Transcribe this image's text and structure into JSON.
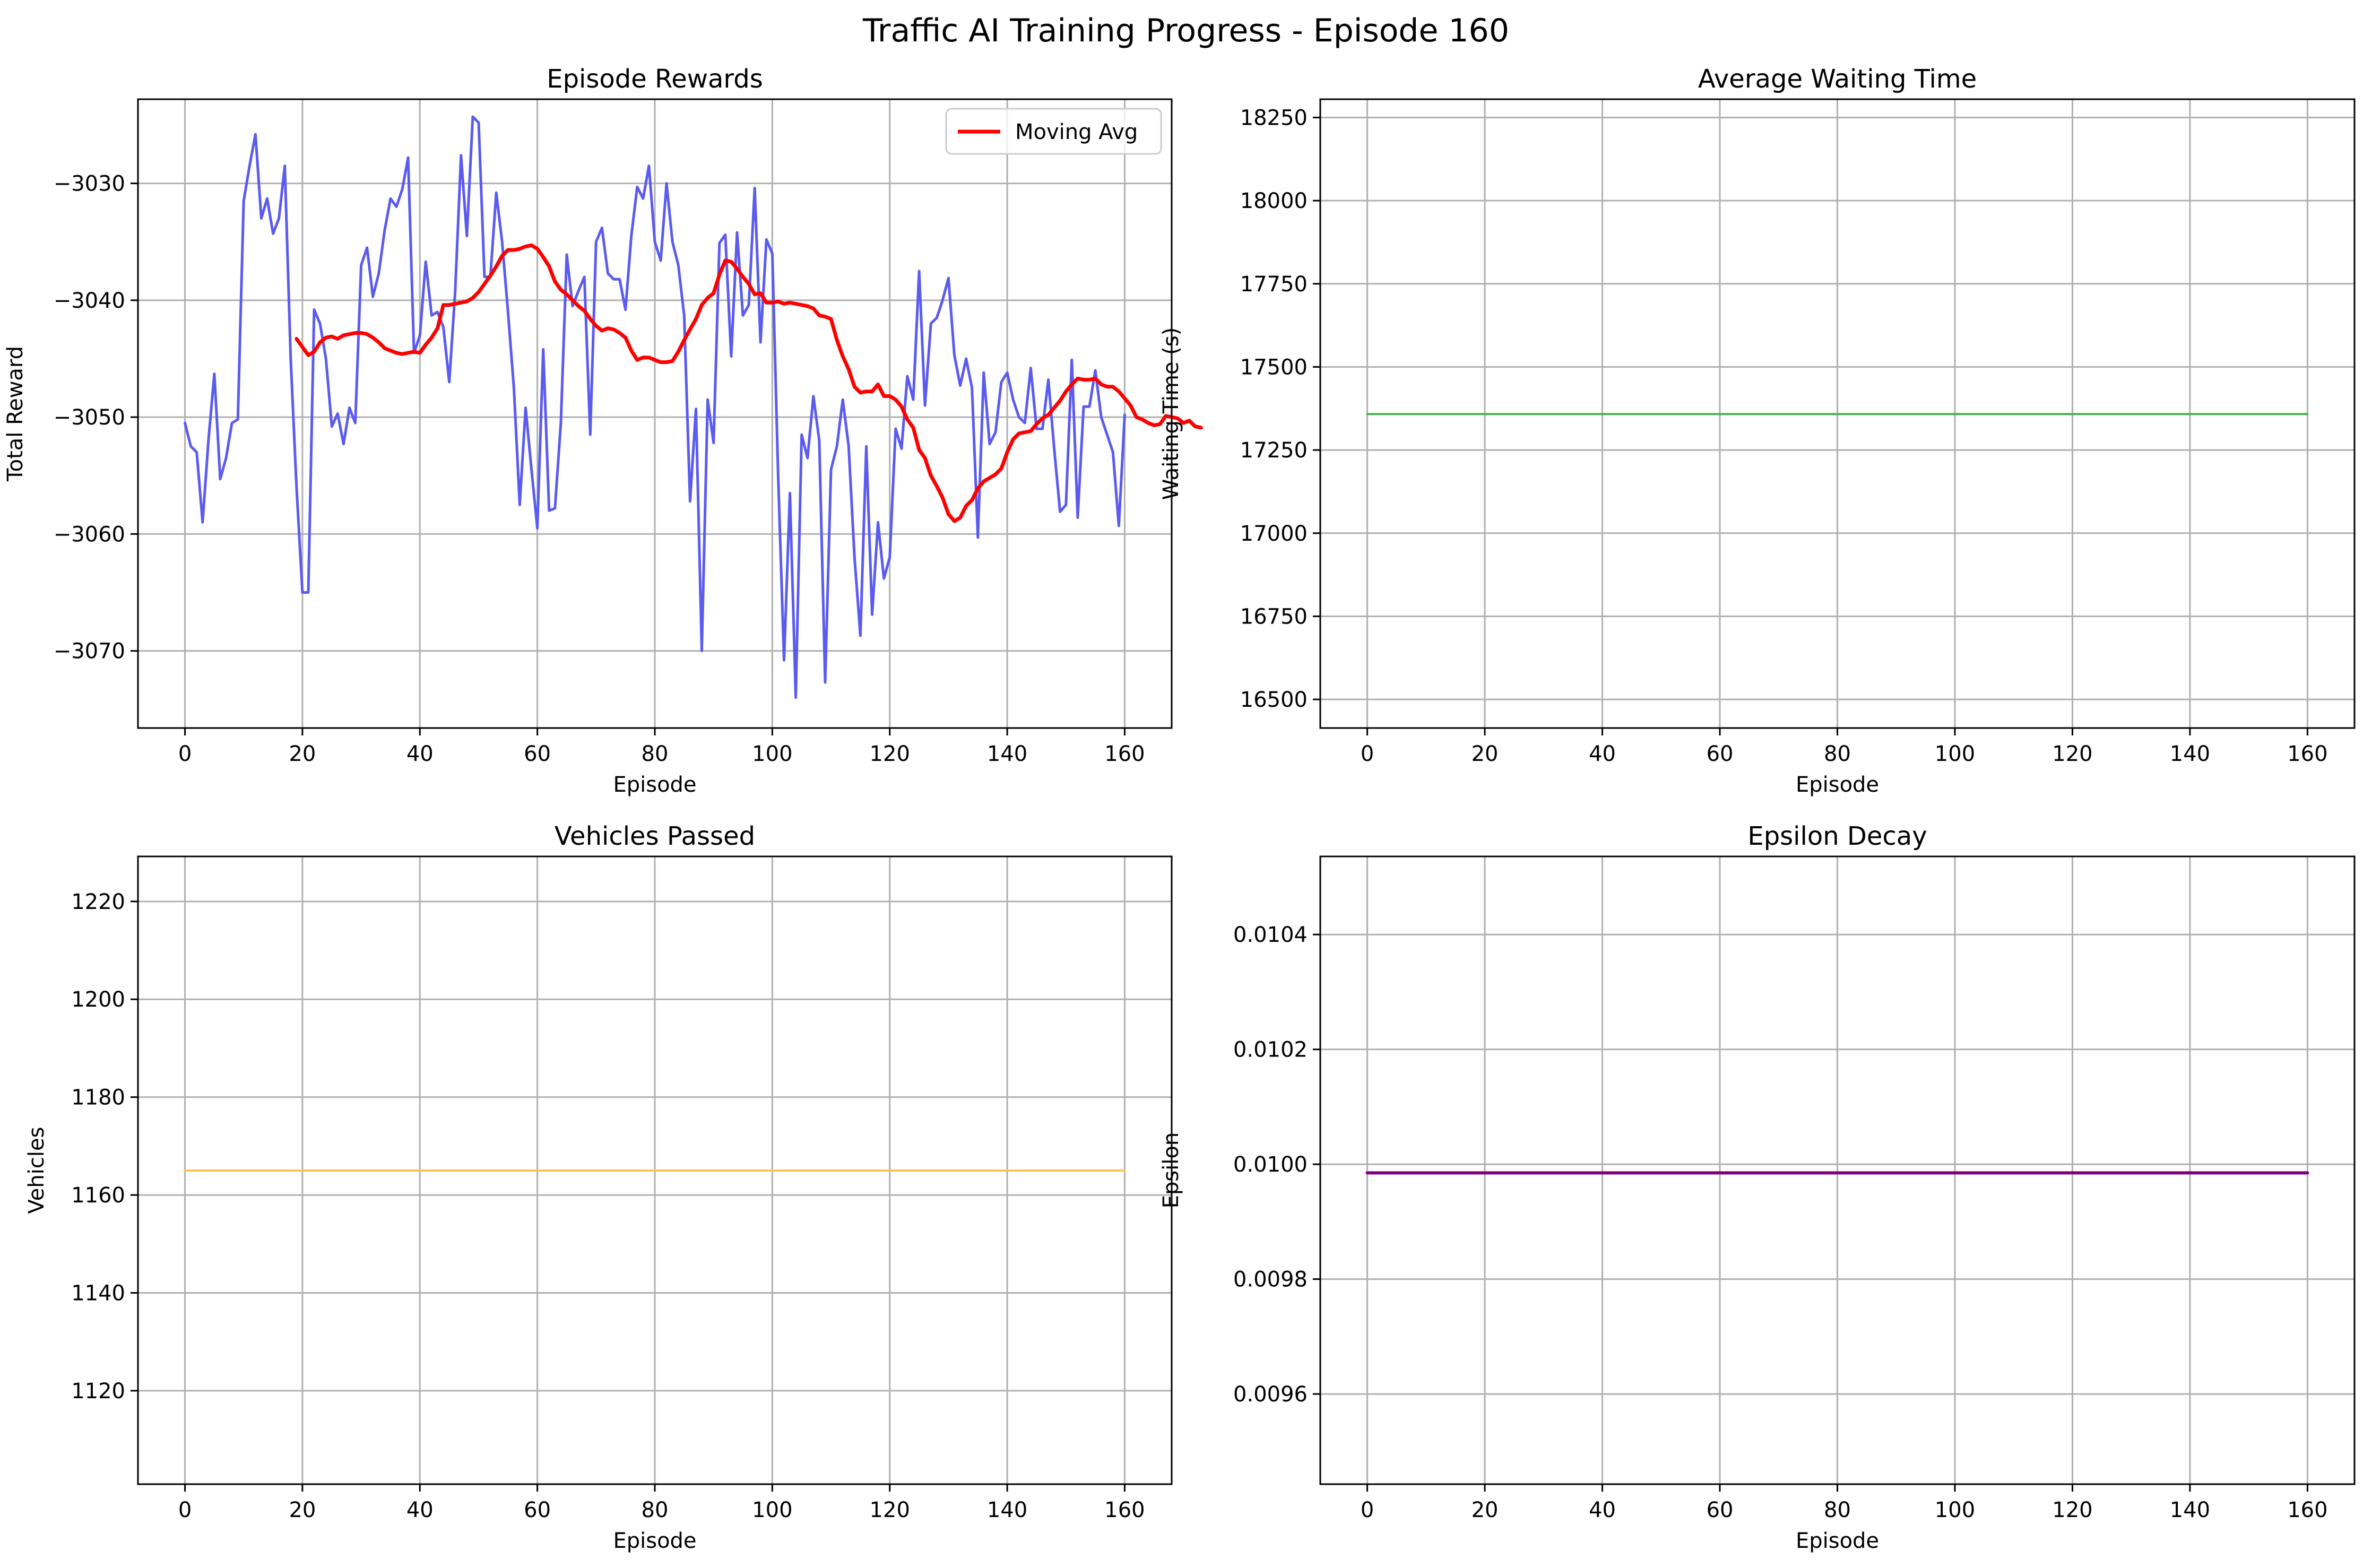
{
  "title": "Traffic AI Training Progress - Episode 160",
  "chart_data": [
    {
      "type": "line",
      "title": "Episode Rewards",
      "xlabel": "Episode",
      "ylabel": "Total Reward",
      "xlim": [
        -8,
        168
      ],
      "ylim": [
        -3076.6,
        -3022.8
      ],
      "xticks": [
        0,
        20,
        40,
        60,
        80,
        100,
        120,
        140,
        160
      ],
      "yticks": [
        -3070,
        -3060,
        -3050,
        -3040,
        -3030
      ],
      "grid": true,
      "legend": "top-right",
      "series": [
        {
          "color": "#5b5bf0",
          "x_start": 0,
          "values": [
            -3050.5,
            -3052.5,
            -3053,
            -3059,
            -3052,
            -3046.3,
            -3055.3,
            -3053.5,
            -3050.5,
            -3050.2,
            -3031.5,
            -3028.5,
            -3025.8,
            -3033,
            -3031.3,
            -3034.3,
            -3033,
            -3028.5,
            -3045,
            -3056,
            -3065,
            -3065,
            -3040.8,
            -3042,
            -3045,
            -3050.8,
            -3049.7,
            -3052.3,
            -3049.2,
            -3050.5,
            -3037,
            -3035.5,
            -3039.7,
            -3037.7,
            -3034,
            -3031.3,
            -3032,
            -3030.5,
            -3027.8,
            -3044.5,
            -3043,
            -3036.7,
            -3041.3,
            -3041,
            -3042.3,
            -3047,
            -3039.3,
            -3027.6,
            -3034.5,
            -3024.3,
            -3024.8,
            -3038,
            -3038,
            -3030.8,
            -3035,
            -3041,
            -3047.5,
            -3057.5,
            -3049.2,
            -3054.5,
            -3059.5,
            -3044.2,
            -3058,
            -3057.8,
            -3050.5,
            -3036.1,
            -3040.5,
            -3039.2,
            -3038,
            -3051.5,
            -3035,
            -3033.8,
            -3037.7,
            -3038.2,
            -3038.2,
            -3040.8,
            -3034.5,
            -3030.3,
            -3031.3,
            -3028.5,
            -3035,
            -3036.6,
            -3030,
            -3035,
            -3037,
            -3041.3,
            -3057.2,
            -3049.3,
            -3070,
            -3048.5,
            -3052.2,
            -3035.1,
            -3034.4,
            -3044.8,
            -3034.2,
            -3041.3,
            -3040.4,
            -3030.4,
            -3043.6,
            -3034.8,
            -3036,
            -3055,
            -3070.8,
            -3056.5,
            -3074,
            -3051.5,
            -3053.5,
            -3048.2,
            -3052,
            -3072.7,
            -3054.5,
            -3052.5,
            -3048.5,
            -3052.5,
            -3062,
            -3068.7,
            -3052.5,
            -3066.9,
            -3059,
            -3063.8,
            -3062,
            -3051,
            -3052.7,
            -3046.5,
            -3048.5,
            -3037.5,
            -3049,
            -3042,
            -3041.5,
            -3040,
            -3038.1,
            -3044.7,
            -3047.3,
            -3045,
            -3047.5,
            -3060.3,
            -3046.2,
            -3052.3,
            -3051.3,
            -3047,
            -3046.2,
            -3048.5,
            -3050,
            -3050.5,
            -3045.8,
            -3051,
            -3051,
            -3046.8,
            -3052.7,
            -3058.1,
            -3057.5,
            -3045.1,
            -3058.6,
            -3049.1,
            -3049.1,
            -3046,
            -3050,
            -3051.5,
            -3053,
            -3059.3,
            -3049.8
          ]
        },
        {
          "name": "Moving Avg",
          "color": "#ff0000",
          "x_start": 19,
          "values": [
            -3043.3,
            -3044,
            -3044.7,
            -3044.4,
            -3043.6,
            -3043.2,
            -3043.1,
            -3043.3,
            -3043,
            -3042.9,
            -3042.8,
            -3042.8,
            -3042.9,
            -3043.2,
            -3043.6,
            -3044.1,
            -3044.3,
            -3044.5,
            -3044.6,
            -3044.5,
            -3044.4,
            -3044.5,
            -3043.8,
            -3043.2,
            -3042.4,
            -3040.4,
            -3040.4,
            -3040.3,
            -3040.2,
            -3040.1,
            -3039.8,
            -3039.3,
            -3038.6,
            -3037.9,
            -3037.1,
            -3036.2,
            -3035.7,
            -3035.7,
            -3035.6,
            -3035.4,
            -3035.3,
            -3035.6,
            -3036.3,
            -3037.1,
            -3038.4,
            -3039.1,
            -3039.5,
            -3040,
            -3040.5,
            -3040.9,
            -3041.6,
            -3042.2,
            -3042.6,
            -3042.4,
            -3042.5,
            -3042.8,
            -3043.2,
            -3044.3,
            -3045.1,
            -3044.9,
            -3044.9,
            -3045.1,
            -3045.3,
            -3045.3,
            -3045.2,
            -3044.4,
            -3043.4,
            -3042.5,
            -3041.6,
            -3040.4,
            -3039.8,
            -3039.4,
            -3037.8,
            -3036.6,
            -3036.7,
            -3037.3,
            -3038,
            -3038.6,
            -3039.5,
            -3039.4,
            -3040.2,
            -3040.2,
            -3040.1,
            -3040.3,
            -3040.2,
            -3040.3,
            -3040.4,
            -3040.5,
            -3040.7,
            -3041.3,
            -3041.4,
            -3041.6,
            -3043.4,
            -3044.8,
            -3045.9,
            -3047.4,
            -3047.9,
            -3047.8,
            -3047.8,
            -3047.2,
            -3048.2,
            -3048.2,
            -3048.5,
            -3049.1,
            -3050.2,
            -3050.9,
            -3052.8,
            -3053.5,
            -3055,
            -3055.9,
            -3056.9,
            -3058.3,
            -3058.9,
            -3058.6,
            -3057.6,
            -3057.1,
            -3056.1,
            -3055.5,
            -3055.2,
            -3054.9,
            -3054.4,
            -3053,
            -3051.9,
            -3051.4,
            -3051.3,
            -3051.2,
            -3050.6,
            -3050.1,
            -3049.8,
            -3049.2,
            -3048.6,
            -3047.8,
            -3047.2,
            -3046.7,
            -3046.8,
            -3046.8,
            -3046.7,
            -3047.2,
            -3047.4,
            -3047.4,
            -3047.8,
            -3048.4,
            -3049,
            -3050,
            -3050.2,
            -3050.5,
            -3050.7,
            -3050.6,
            -3049.9,
            -3050,
            -3050.1,
            -3050.5,
            -3050.3,
            -3050.8,
            -3050.9
          ]
        }
      ]
    },
    {
      "type": "line",
      "title": "Average Waiting Time",
      "xlabel": "Episode",
      "ylabel": "Waiting Time (s)",
      "xlim": [
        -8,
        168
      ],
      "ylim": [
        16414,
        18305
      ],
      "xticks": [
        0,
        20,
        40,
        60,
        80,
        100,
        120,
        140,
        160
      ],
      "yticks": [
        16500,
        16750,
        17000,
        17250,
        17500,
        17750,
        18000,
        18250
      ],
      "grid": true,
      "series": [
        {
          "color": "#4caf50",
          "x": [
            0,
            160
          ],
          "values": [
            17358,
            17358
          ]
        }
      ]
    },
    {
      "type": "line",
      "title": "Vehicles Passed",
      "xlabel": "Episode",
      "ylabel": "Vehicles",
      "xlim": [
        -8,
        168
      ],
      "ylim": [
        1100.9,
        1229.2
      ],
      "xticks": [
        0,
        20,
        40,
        60,
        80,
        100,
        120,
        140,
        160
      ],
      "yticks": [
        1120,
        1140,
        1160,
        1180,
        1200,
        1220
      ],
      "grid": true,
      "series": [
        {
          "color": "#ffc04d",
          "x": [
            0,
            160
          ],
          "values": [
            1165,
            1165
          ]
        }
      ]
    },
    {
      "type": "line",
      "title": "Epsilon Decay",
      "xlabel": "Episode",
      "ylabel": "Epsilon",
      "xlim": [
        -8,
        168
      ],
      "ylim": [
        0.009443,
        0.010536
      ],
      "xticks": [
        0,
        20,
        40,
        60,
        80,
        100,
        120,
        140,
        160
      ],
      "yticks": [
        0.0096,
        0.0098,
        0.01,
        0.0102,
        0.0104
      ],
      "ytick_labels": [
        "0.0096",
        "0.0098",
        "0.0100",
        "0.0102",
        "0.0104"
      ],
      "grid": true,
      "series": [
        {
          "color": "#800080",
          "x": [
            0,
            160
          ],
          "values": [
            0.009985,
            0.009985
          ]
        }
      ]
    }
  ]
}
